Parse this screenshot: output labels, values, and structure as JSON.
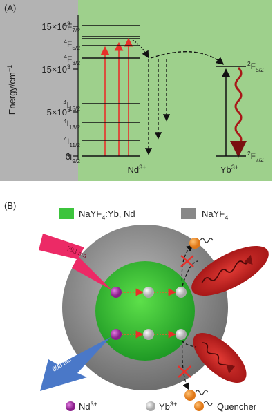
{
  "panel_a": {
    "label": "(A)",
    "y_axis_label": [
      {
        "t": "Energy/cm"
      },
      {
        "sup": "−1"
      }
    ],
    "y_ticks": [
      [
        {
          "t": "15×10"
        },
        {
          "sup": "3"
        }
      ],
      [
        {
          "t": "15×10"
        },
        {
          "sup": "3"
        }
      ],
      [
        {
          "t": "5×10"
        },
        {
          "sup": "3"
        }
      ],
      [
        {
          "t": "0"
        }
      ]
    ],
    "nd_levels": [
      [
        {
          "sup": "4"
        },
        {
          "t": "F"
        },
        {
          "sub": "7/2"
        }
      ],
      [
        {
          "sup": "4"
        },
        {
          "t": "F"
        },
        {
          "sub": "5/2"
        }
      ],
      [
        {
          "sup": "4"
        },
        {
          "t": "F"
        },
        {
          "sub": "3/2"
        }
      ],
      [
        {
          "sup": "4"
        },
        {
          "t": "I"
        },
        {
          "sub": "15/2"
        }
      ],
      [
        {
          "sup": "4"
        },
        {
          "t": "I"
        },
        {
          "sub": "13/2"
        }
      ],
      [
        {
          "sup": "4"
        },
        {
          "t": "I"
        },
        {
          "sub": "11/2"
        }
      ],
      [
        {
          "sup": "4"
        },
        {
          "t": "I"
        },
        {
          "sub": "9/2"
        }
      ]
    ],
    "yb_levels": [
      [
        {
          "sup": "2"
        },
        {
          "t": "F"
        },
        {
          "sub": "5/2"
        }
      ],
      [
        {
          "sup": "2"
        },
        {
          "t": "F"
        },
        {
          "sub": "7/2"
        }
      ]
    ],
    "nd_label": [
      {
        "t": "Nd"
      },
      {
        "sup": "3+"
      }
    ],
    "yb_label": [
      {
        "t": "Yb"
      },
      {
        "sup": "3+"
      }
    ]
  },
  "panel_b": {
    "label": "(B)",
    "legend": [
      [
        {
          "t": "NaYF"
        },
        {
          "sub": "4"
        },
        {
          "t": ":Yb, Nd"
        }
      ],
      [
        {
          "t": "NaYF"
        },
        {
          "sub": "4"
        }
      ]
    ],
    "lasers": [
      "793 nm",
      "808 nm"
    ],
    "key": [
      [
        {
          "t": "Nd"
        },
        {
          "sup": "3+"
        }
      ],
      [
        {
          "t": "Yb"
        },
        {
          "sup": "3+"
        }
      ],
      [
        {
          "t": "Quencher"
        }
      ]
    ]
  }
}
